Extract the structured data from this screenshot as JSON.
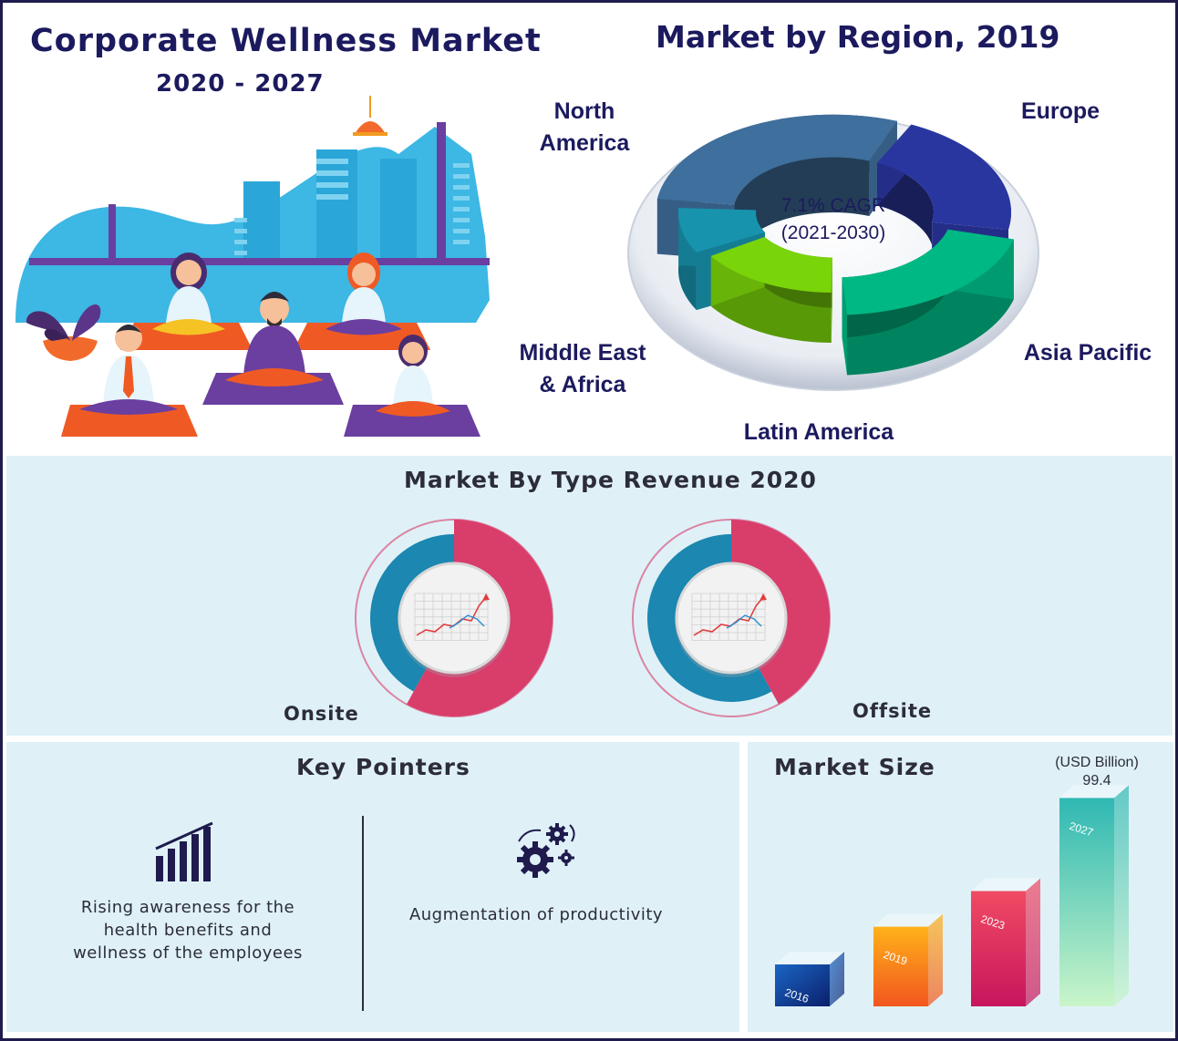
{
  "header": {
    "title": "Corporate Wellness Market",
    "years": "2020 - 2027"
  },
  "colors": {
    "navy": "#1c1a5e",
    "north_america": "#3f6f9c",
    "europe": "#2a36a0",
    "asia_pacific": "#00b884",
    "latin_america": "#7ad40a",
    "middle_east_africa": "#1893ad",
    "donut_pink": "#d93d6a",
    "donut_blue": "#1c87b0",
    "panel_bg": "#dff1f7"
  },
  "illustration": {
    "scene": "corporate-yoga-office",
    "icons": [
      "city-skyline-icon",
      "pendant-lamp-icon",
      "potted-plant-icon",
      "meditating-people-icon"
    ]
  },
  "chart_data": [
    {
      "type": "pie",
      "title": "Market by Region, 2019",
      "center_text": [
        "7.1% CAGR",
        "(2021-2030)"
      ],
      "categories": [
        "North America",
        "Europe",
        "Asia Pacific",
        "Latin America",
        "Middle East & Africa"
      ],
      "label_lines": [
        [
          "North",
          "America"
        ],
        [
          "Europe"
        ],
        [
          "Asia Pacific"
        ],
        [
          "Latin America"
        ],
        [
          "Middle East",
          "& Africa"
        ]
      ],
      "values": [
        30,
        22,
        21,
        17,
        10
      ]
    },
    {
      "type": "pie",
      "title": "Market By Type Revenue 2020",
      "charts": [
        {
          "label": "Onsite",
          "pink_share": 0.58
        },
        {
          "label": "Offsite",
          "pink_share": 0.42
        }
      ]
    },
    {
      "type": "bar",
      "title": "Market Size",
      "unit": "(USD Billion)",
      "categories": [
        "2016",
        "2019",
        "2023",
        "2027"
      ],
      "value_labels": [
        "",
        "",
        "",
        "99.4"
      ],
      "values": [
        20,
        38,
        55,
        99.4
      ]
    }
  ],
  "key_pointers": {
    "title": "Key Pointers",
    "items": [
      {
        "icon": "rising-bars-icon",
        "lines": [
          "Rising awareness for the",
          "health benefits and",
          "wellness of the employees"
        ]
      },
      {
        "icon": "gears-icon",
        "lines": [
          "Augmentation of productivity"
        ]
      }
    ]
  }
}
